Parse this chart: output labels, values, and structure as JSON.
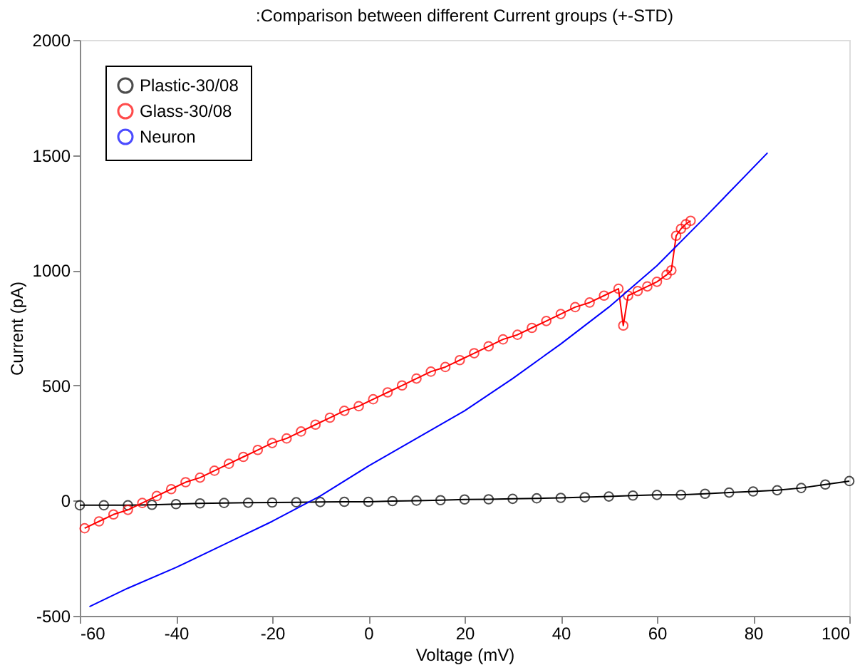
{
  "chart_data": {
    "type": "line",
    "title": ":Comparison between different Current groups (+-STD)",
    "xlabel": "Voltage (mV)",
    "ylabel": "Current (pA)",
    "xlim": [
      -60,
      100
    ],
    "xticks": [
      -60,
      -40,
      -20,
      0,
      20,
      40,
      60,
      80,
      100
    ],
    "ylim": [
      -500,
      2000
    ],
    "yticks": [
      -500,
      0,
      500,
      1000,
      1500,
      2000
    ],
    "grid": false,
    "legend": "top left",
    "series": [
      {
        "name": "Plastic-30/08",
        "color": "#000000",
        "marker": "circle",
        "x": [
          -60,
          -55,
          -50,
          -45,
          -40,
          -35,
          -30,
          -25,
          -20,
          -15,
          -10,
          -5,
          0,
          5,
          10,
          15,
          20,
          25,
          30,
          35,
          40,
          45,
          50,
          55,
          60,
          65,
          70,
          75,
          80,
          85,
          90,
          95,
          100
        ],
        "values": [
          -20,
          -20,
          -20,
          -18,
          -15,
          -12,
          -10,
          -9,
          -8,
          -7,
          -6,
          -5,
          -5,
          -2,
          0,
          2,
          5,
          6,
          8,
          10,
          12,
          15,
          18,
          22,
          25,
          25,
          30,
          35,
          40,
          45,
          55,
          70,
          85
        ]
      },
      {
        "name": "Glass-30/08",
        "color": "#ff0000",
        "marker": "circle",
        "x": [
          -59,
          -56,
          -53,
          -50,
          -47,
          -44,
          -41,
          -38,
          -35,
          -32,
          -29,
          -26,
          -23,
          -20,
          -17,
          -14,
          -11,
          -8,
          -5,
          -2,
          1,
          4,
          7,
          10,
          13,
          16,
          19,
          22,
          25,
          28,
          31,
          34,
          37,
          40,
          43,
          46,
          49,
          52,
          53,
          54,
          56,
          58,
          60,
          62,
          63,
          64,
          65,
          66,
          67
        ],
        "values": [
          -120,
          -90,
          -60,
          -40,
          -10,
          20,
          50,
          80,
          100,
          130,
          160,
          190,
          220,
          250,
          270,
          300,
          330,
          360,
          390,
          410,
          440,
          470,
          500,
          530,
          560,
          580,
          610,
          640,
          670,
          700,
          720,
          750,
          780,
          810,
          840,
          860,
          890,
          920,
          760,
          890,
          910,
          930,
          950,
          980,
          1000,
          1150,
          1180,
          1200,
          1215
        ]
      },
      {
        "name": "Neuron",
        "color": "#0000ff",
        "marker": "none",
        "x": [
          -58,
          -50,
          -40,
          -30,
          -20,
          -10,
          0,
          10,
          20,
          30,
          40,
          50,
          60,
          70,
          83
        ],
        "values": [
          -460,
          -380,
          -290,
          -190,
          -90,
          20,
          150,
          270,
          390,
          530,
          680,
          840,
          1020,
          1230,
          1510
        ]
      }
    ]
  }
}
